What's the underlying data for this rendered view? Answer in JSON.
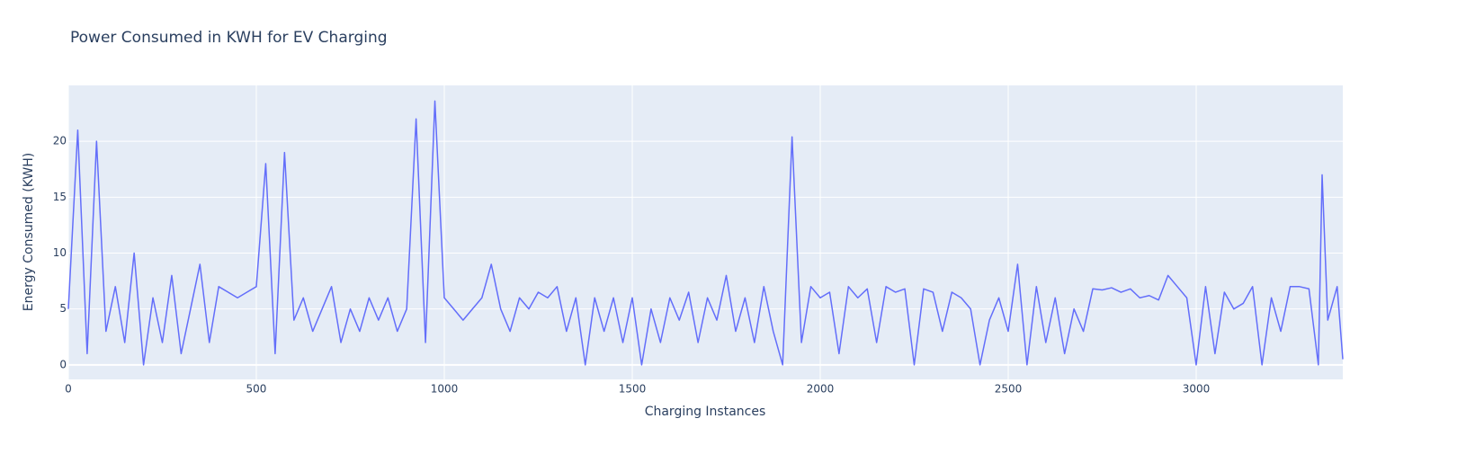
{
  "chart_data": {
    "type": "line",
    "title": "Power Consumed in KWH for EV Charging",
    "x_label": "Charging Instances",
    "y_label": "Energy Consumed (KWH)",
    "color": "#636efa",
    "background": "#e5ecf6",
    "grid": true,
    "x": [
      0,
      25,
      50,
      75,
      100,
      125,
      150,
      175,
      200,
      225,
      250,
      275,
      300,
      325,
      350,
      375,
      400,
      425,
      450,
      475,
      500,
      525,
      550,
      575,
      600,
      625,
      650,
      675,
      700,
      725,
      750,
      775,
      800,
      825,
      850,
      875,
      900,
      925,
      950,
      975,
      1000,
      1025,
      1050,
      1075,
      1100,
      1125,
      1150,
      1175,
      1200,
      1225,
      1250,
      1275,
      1300,
      1325,
      1350,
      1375,
      1400,
      1425,
      1450,
      1475,
      1500,
      1525,
      1550,
      1575,
      1600,
      1625,
      1650,
      1675,
      1700,
      1725,
      1750,
      1775,
      1800,
      1825,
      1850,
      1875,
      1900,
      1925,
      1950,
      1975,
      2000,
      2025,
      2050,
      2075,
      2100,
      2125,
      2150,
      2175,
      2200,
      2225,
      2250,
      2275,
      2300,
      2325,
      2350,
      2375,
      2400,
      2425,
      2450,
      2475,
      2500,
      2525,
      2550,
      2575,
      2600,
      2625,
      2650,
      2675,
      2700,
      2725,
      2750,
      2775,
      2800,
      2825,
      2850,
      2875,
      2900,
      2925,
      2950,
      2975,
      3000,
      3025,
      3050,
      3075,
      3100,
      3125,
      3150,
      3175,
      3200,
      3225,
      3250,
      3275,
      3300,
      3325,
      3335,
      3350,
      3375,
      3390
    ],
    "values": [
      5,
      21,
      1,
      20,
      3,
      7,
      2,
      10,
      0,
      6,
      2,
      8,
      1,
      5,
      9,
      2,
      7,
      6.5,
      6,
      6.5,
      7,
      18,
      1,
      19,
      4,
      6,
      3,
      5,
      7,
      2,
      5,
      3,
      6,
      4,
      6,
      3,
      5,
      22,
      2,
      23.6,
      6,
      5,
      4,
      5,
      6,
      9,
      5,
      3,
      6,
      5,
      6.5,
      6,
      7,
      3,
      6,
      0,
      6,
      3,
      6,
      2,
      6,
      0,
      5,
      2,
      6,
      4,
      6.5,
      2,
      6,
      4,
      8,
      3,
      6,
      2,
      7,
      3,
      0,
      20.4,
      2,
      7,
      6,
      6.5,
      1,
      7,
      6,
      6.8,
      2,
      7,
      6.5,
      6.8,
      0,
      6.8,
      6.5,
      3,
      6.5,
      6,
      5,
      0,
      4,
      6,
      3,
      9,
      0,
      7,
      2,
      6,
      1,
      5,
      3,
      6.8,
      6.7,
      6.9,
      6.5,
      6.8,
      6,
      6.2,
      5.8,
      8,
      7,
      6,
      0,
      7,
      1,
      6.5,
      5,
      5.5,
      7,
      0,
      6,
      3,
      7,
      7,
      6.8,
      0,
      17,
      4,
      7,
      0.5
    ],
    "xlim": [
      0,
      3390
    ],
    "ylim": [
      -1.3,
      25
    ],
    "xticks": [
      0,
      500,
      1000,
      1500,
      2000,
      2500,
      3000
    ],
    "yticks": [
      0,
      5,
      10,
      15,
      20
    ]
  }
}
